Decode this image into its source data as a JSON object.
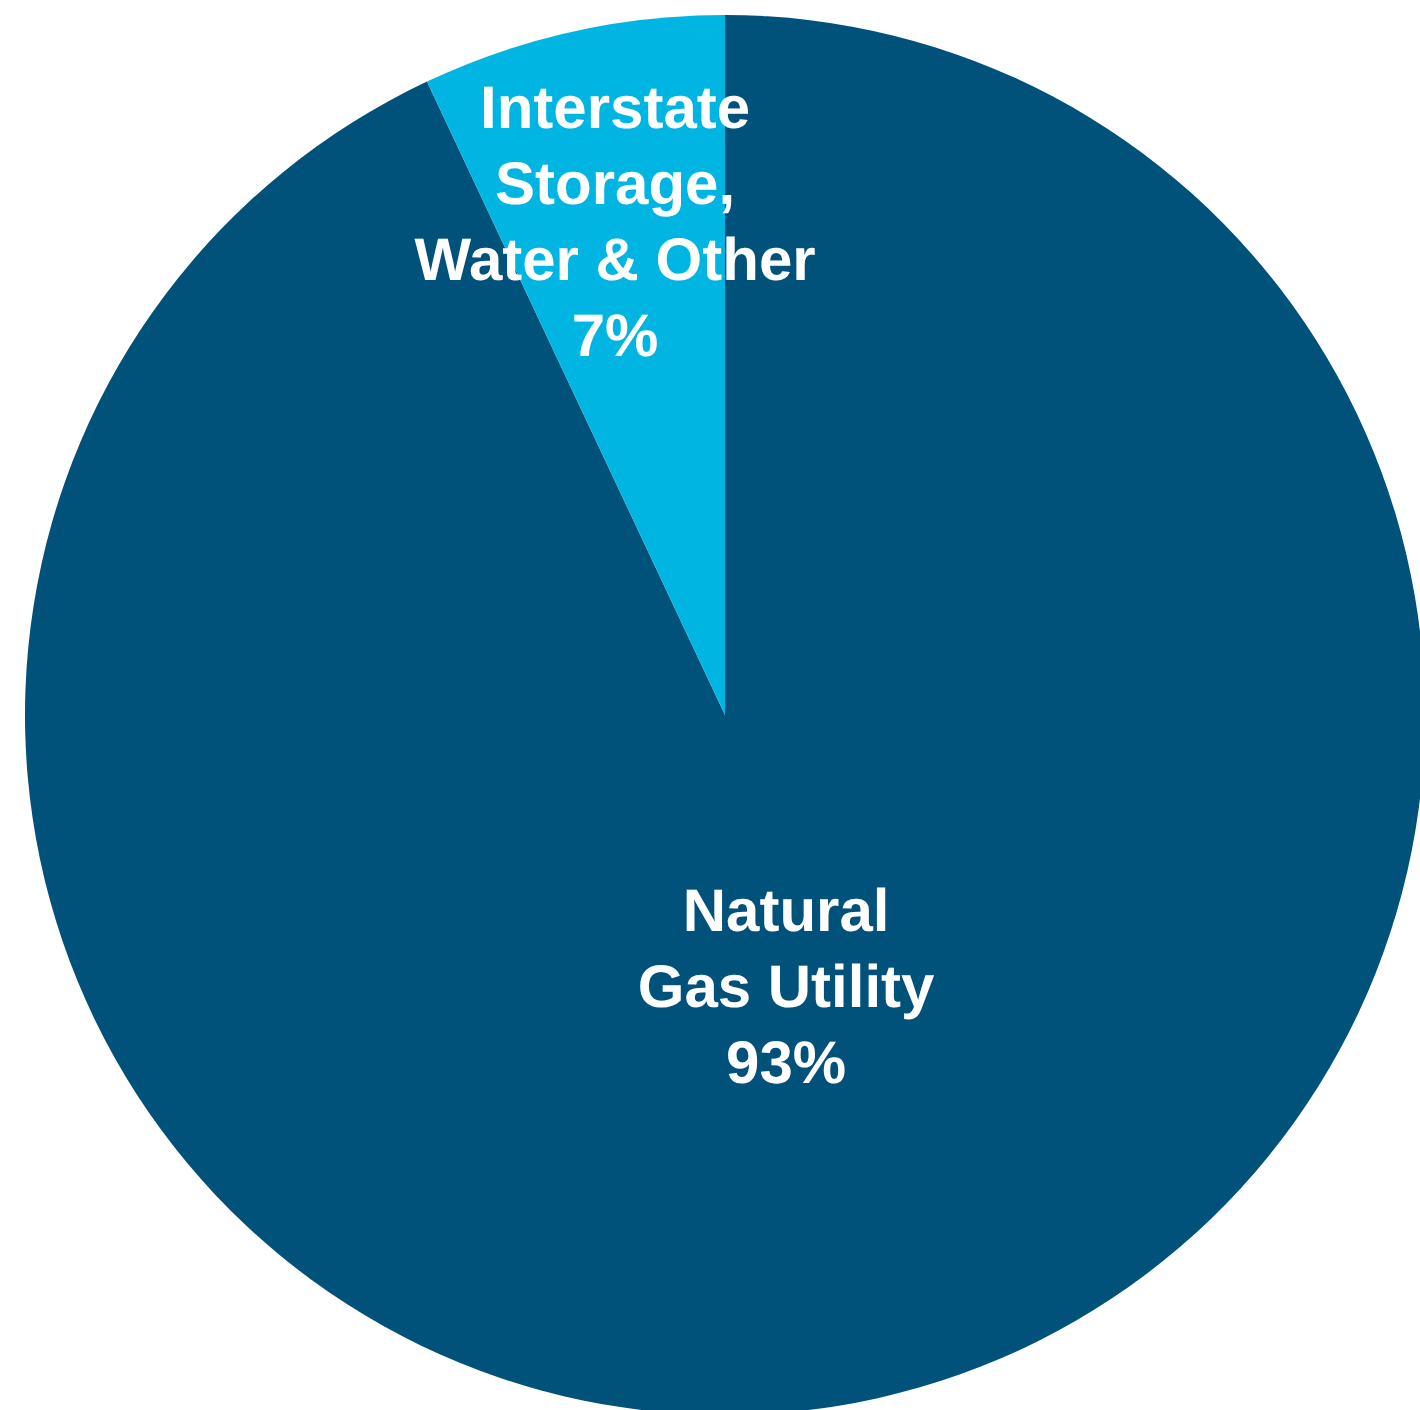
{
  "chart_data": {
    "type": "pie",
    "categories": [
      "Natural\nGas Utility",
      "Interstate\nStorage,\nWater & Other"
    ],
    "values": [
      93,
      7
    ],
    "colors": [
      "#00527a",
      "#00b5e2"
    ],
    "value_labels": [
      "93%",
      "7%"
    ]
  }
}
